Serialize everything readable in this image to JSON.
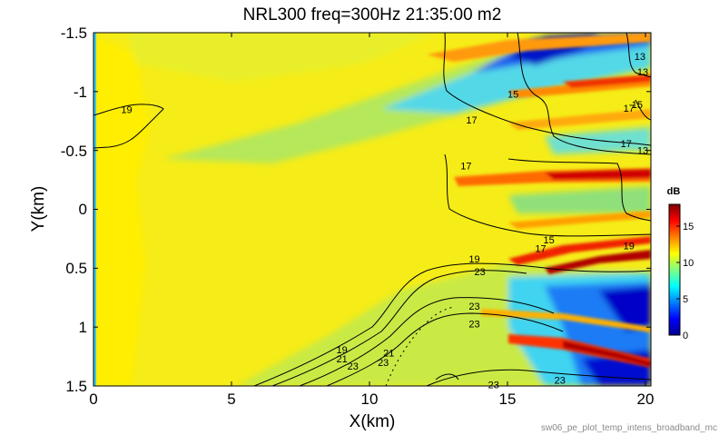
{
  "chart_data": {
    "type": "heatmap",
    "title": "NRL300 freq=300Hz 21:35:00 m2",
    "xlabel": "X(km)",
    "ylabel": "Y(km)",
    "xlim": [
      0,
      20.2
    ],
    "ylim": [
      -1.5,
      1.5
    ],
    "y_axis_reversed": true,
    "x_ticks": [
      "0",
      "5",
      "10",
      "15",
      "20"
    ],
    "y_ticks": [
      "-1.5",
      "-1",
      "-0.5",
      "0",
      "0.5",
      "1",
      "1.5"
    ],
    "colorbar": {
      "unit": "dB",
      "range": [
        0,
        18
      ],
      "ticks": [
        "0",
        "5",
        "10",
        "15"
      ],
      "colormap": "jet"
    },
    "background_level_db": 12,
    "contour_labels": [
      {
        "text": "19",
        "x": 1.2,
        "y": -0.85
      },
      {
        "text": "15",
        "x": 15.2,
        "y": -0.98
      },
      {
        "text": "17",
        "x": 13.7,
        "y": -0.76
      },
      {
        "text": "17",
        "x": 13.5,
        "y": -0.37
      },
      {
        "text": "13",
        "x": 19.8,
        "y": -1.3
      },
      {
        "text": "13",
        "x": 19.9,
        "y": -1.17
      },
      {
        "text": "17",
        "x": 19.4,
        "y": -0.86
      },
      {
        "text": "15",
        "x": 19.7,
        "y": -0.89
      },
      {
        "text": "17",
        "x": 19.3,
        "y": -0.56
      },
      {
        "text": "13",
        "x": 19.9,
        "y": -0.5
      },
      {
        "text": "15",
        "x": 16.5,
        "y": 0.26
      },
      {
        "text": "17",
        "x": 16.2,
        "y": 0.33
      },
      {
        "text": "19",
        "x": 19.4,
        "y": 0.31
      },
      {
        "text": "19",
        "x": 13.8,
        "y": 0.42
      },
      {
        "text": "23",
        "x": 14.0,
        "y": 0.53
      },
      {
        "text": "23",
        "x": 13.8,
        "y": 0.82
      },
      {
        "text": "23",
        "x": 13.8,
        "y": 0.97
      },
      {
        "text": "19",
        "x": 9.0,
        "y": 1.19
      },
      {
        "text": "21",
        "x": 9.0,
        "y": 1.27
      },
      {
        "text": "23",
        "x": 9.4,
        "y": 1.33
      },
      {
        "text": "21",
        "x": 10.7,
        "y": 1.22
      },
      {
        "text": "23",
        "x": 10.5,
        "y": 1.3
      },
      {
        "text": "23",
        "x": 14.5,
        "y": 1.49
      },
      {
        "text": "23",
        "x": 16.9,
        "y": 1.45
      }
    ]
  },
  "footer": "sw06_pe_plot_temp_intens_broadband_mc"
}
